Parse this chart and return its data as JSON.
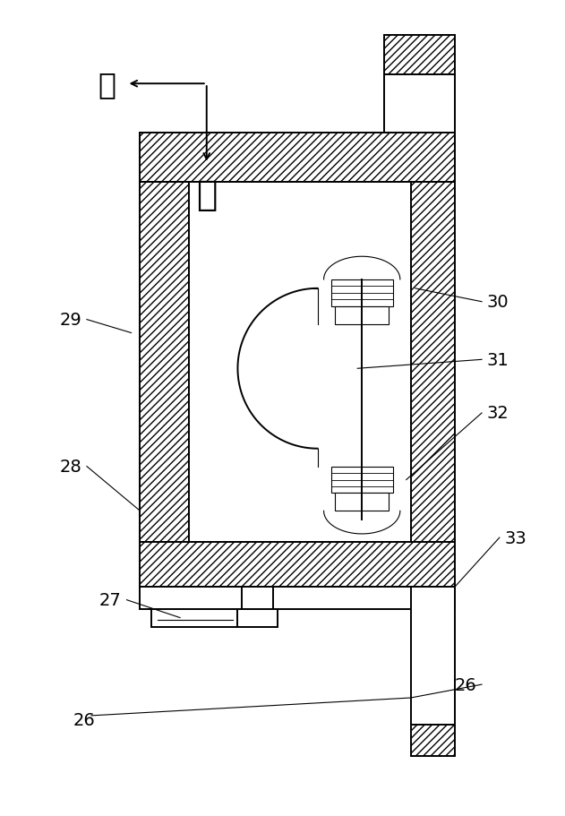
{
  "bg_color": "#ffffff",
  "line_color": "#000000",
  "lw": 1.4,
  "lw_thin": 0.8,
  "fig_width": 6.31,
  "fig_height": 9.12,
  "hatch": "////",
  "label_fs": 14
}
